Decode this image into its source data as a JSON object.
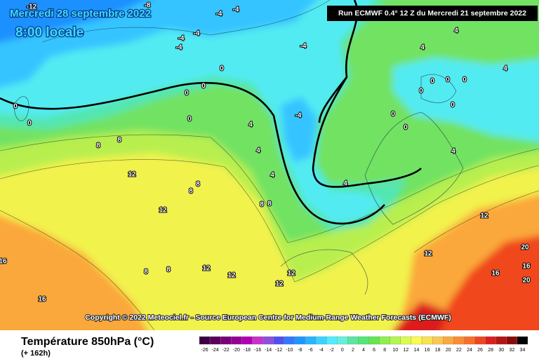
{
  "header": {
    "date": "Mercredi 28 septembre 2022",
    "time": "8:00 locale",
    "run": "Run ECMWF 0.4° 12 Z du Mercredi 21 septembre 2022"
  },
  "copyright": "Copyright © 2022 Meteociel.fr - Source European Centre for Medium-Range Weather Forecasts (ECMWF)",
  "footer": {
    "title": "Température 850hPa (°C)",
    "lead": "(+ 162h)"
  },
  "scale": {
    "labels": [
      -26,
      -24,
      -22,
      -20,
      -18,
      -16,
      -14,
      -12,
      -10,
      -8,
      -6,
      -4,
      -2,
      0,
      2,
      4,
      6,
      8,
      10,
      12,
      14,
      16,
      18,
      20,
      22,
      24,
      26,
      28,
      30,
      32,
      34
    ],
    "colors": [
      "#3d0040",
      "#5a005a",
      "#780078",
      "#960096",
      "#b400b4",
      "#c832c8",
      "#8c50dc",
      "#5050f0",
      "#3278ff",
      "#1e96ff",
      "#28b4ff",
      "#3cd2ff",
      "#50ebff",
      "#64f0dc",
      "#5ae6a0",
      "#50e678",
      "#64e650",
      "#8cf050",
      "#b4f550",
      "#dcfa50",
      "#fafa50",
      "#fae150",
      "#fac850",
      "#faaa3c",
      "#fa8c32",
      "#fa6e28",
      "#f0461e",
      "#dc1e1e",
      "#b41414",
      "#8c0a0a",
      "#000000"
    ]
  },
  "contour_labels": [
    -12,
    -8,
    -4,
    -4,
    -4,
    -4,
    -4,
    -4,
    4,
    4,
    4,
    0,
    0,
    0,
    0,
    0,
    0,
    -4,
    4,
    4,
    8,
    8,
    12,
    8,
    8,
    12,
    4,
    4,
    4,
    0,
    0,
    0,
    0,
    0,
    0,
    0,
    8,
    8,
    12,
    12,
    20,
    16,
    16,
    20,
    16,
    16,
    8,
    8,
    12,
    12,
    12,
    12
  ]
}
